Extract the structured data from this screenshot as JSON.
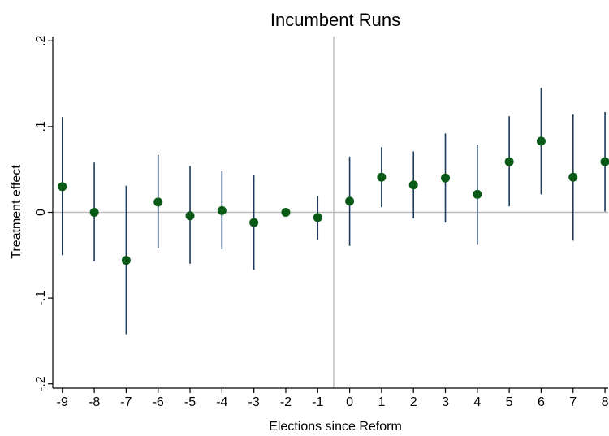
{
  "chart_data": {
    "type": "scatter",
    "title": "Incumbent Runs",
    "xlabel": "Elections since Reform",
    "ylabel": "Treatment effect",
    "x_ticks": [
      -9,
      -8,
      -7,
      -6,
      -5,
      -4,
      -3,
      -2,
      -1,
      0,
      1,
      2,
      3,
      4,
      5,
      6,
      7,
      8
    ],
    "x_tick_labels": [
      "-9",
      "-8",
      "-7",
      "-6",
      "-5",
      "-4",
      "-3",
      "-2",
      "-1",
      "0",
      "1",
      "2",
      "3",
      "4",
      "5",
      "6",
      "7",
      "8"
    ],
    "y_ticks": [
      -0.2,
      -0.1,
      0,
      0.1,
      0.2
    ],
    "y_tick_labels": [
      "-.2",
      "-.1",
      "0",
      ".1",
      ".2"
    ],
    "xlim": [
      -9.3,
      8.1
    ],
    "ylim": [
      -0.205,
      0.205
    ],
    "reference_lines": {
      "y": 0,
      "x": -0.5
    },
    "series": [
      {
        "x": [
          -9,
          -8,
          -7,
          -6,
          -5,
          -4,
          -3,
          -2,
          -1,
          0,
          1,
          2,
          3,
          4,
          5,
          6,
          7,
          8
        ],
        "estimate": [
          0.03,
          0.0,
          -0.056,
          0.012,
          -0.004,
          0.002,
          -0.012,
          0.0,
          -0.006,
          0.013,
          0.041,
          0.032,
          0.04,
          0.021,
          0.059,
          0.083,
          0.041,
          0.059
        ],
        "ci_lower": [
          -0.05,
          -0.057,
          -0.142,
          -0.042,
          -0.06,
          -0.043,
          -0.067,
          0.0,
          -0.032,
          -0.039,
          0.006,
          -0.007,
          -0.012,
          -0.038,
          0.007,
          0.021,
          -0.033,
          0.001
        ],
        "ci_upper": [
          0.111,
          0.058,
          0.031,
          0.067,
          0.054,
          0.048,
          0.043,
          0.0,
          0.019,
          0.065,
          0.076,
          0.071,
          0.092,
          0.079,
          0.112,
          0.145,
          0.114,
          0.117
        ]
      }
    ],
    "marker_color": "#0a5a17",
    "ci_color": "#1b3a5c",
    "reference_line_color": "#bdbdbd",
    "grid": false
  }
}
